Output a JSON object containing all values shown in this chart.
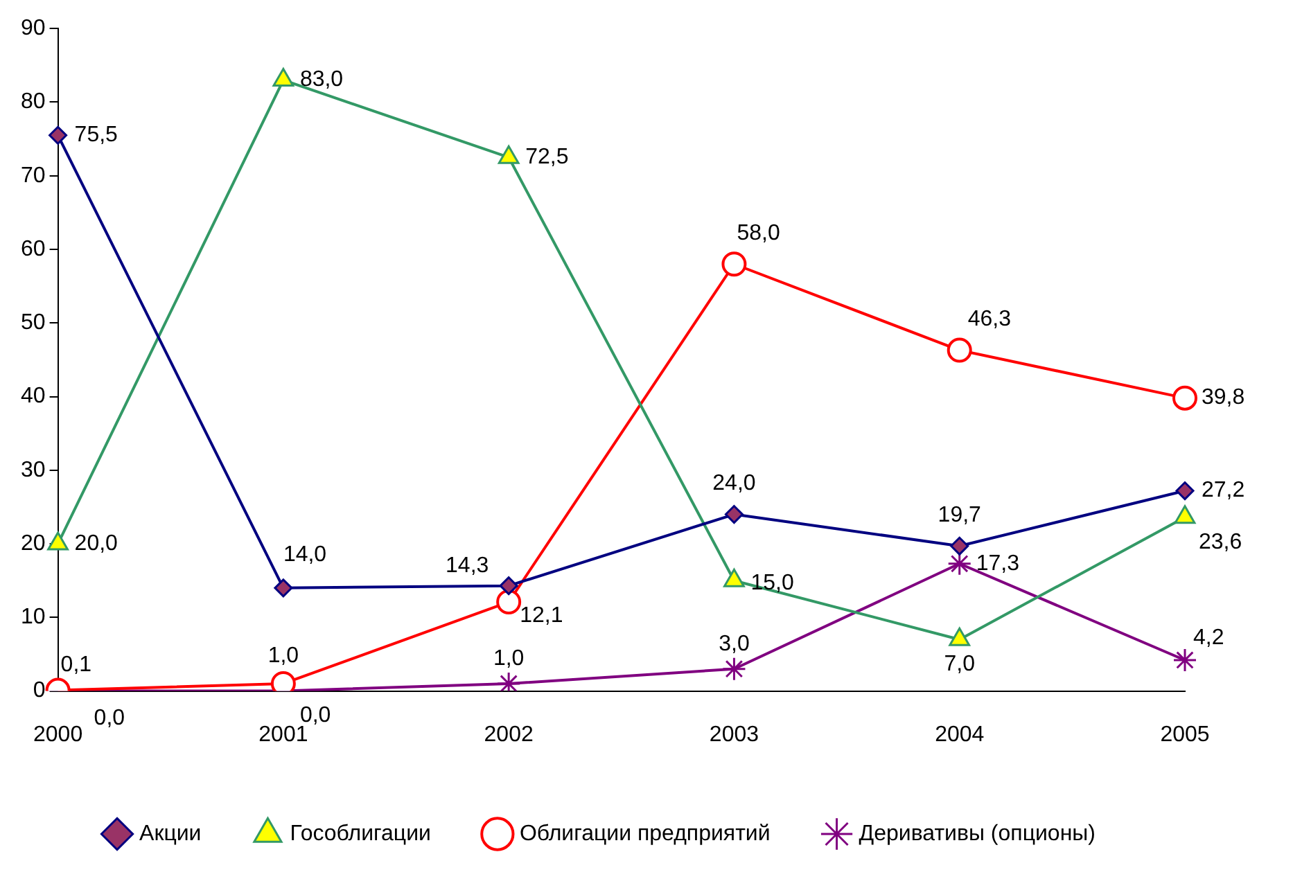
{
  "chart_data": {
    "type": "line",
    "categories": [
      "2000",
      "2001",
      "2002",
      "2003",
      "2004",
      "2005"
    ],
    "series": [
      {
        "name": "Акции",
        "color": "#000080",
        "marker": "diamond",
        "values": [
          75.5,
          14.0,
          14.3,
          24.0,
          19.7,
          27.2
        ],
        "value_labels": [
          "75,5",
          "14,0",
          "14,3",
          "24,0",
          "19,7",
          "27,2"
        ]
      },
      {
        "name": "Гособлигации",
        "color": "#339966",
        "marker": "triangle",
        "values": [
          20.0,
          83.0,
          72.5,
          15.0,
          7.0,
          23.6
        ],
        "value_labels": [
          "20,0",
          "83,0",
          "72,5",
          "15,0",
          "7,0",
          "23,6"
        ]
      },
      {
        "name": "Облигации предприятий",
        "color": "#ff0000",
        "marker": "circle",
        "values": [
          0.1,
          1.0,
          12.1,
          58.0,
          46.3,
          39.8
        ],
        "value_labels": [
          "0,1",
          "1,0",
          "12,1",
          "58,0",
          "46,3",
          "39,8"
        ]
      },
      {
        "name": "Деривативы (опционы)",
        "color": "#800080",
        "marker": "cross",
        "values": [
          0.0,
          0.0,
          1.0,
          3.0,
          17.3,
          4.2
        ],
        "value_labels": [
          "0,0",
          "0,0",
          "1,0",
          "3,0",
          "17,3",
          "4,2"
        ]
      }
    ],
    "ylim": [
      0,
      90
    ],
    "yticks": [
      0,
      10,
      20,
      30,
      40,
      50,
      60,
      70,
      80,
      90
    ],
    "grid": false,
    "legend": "bottom",
    "line_style": "solid"
  }
}
